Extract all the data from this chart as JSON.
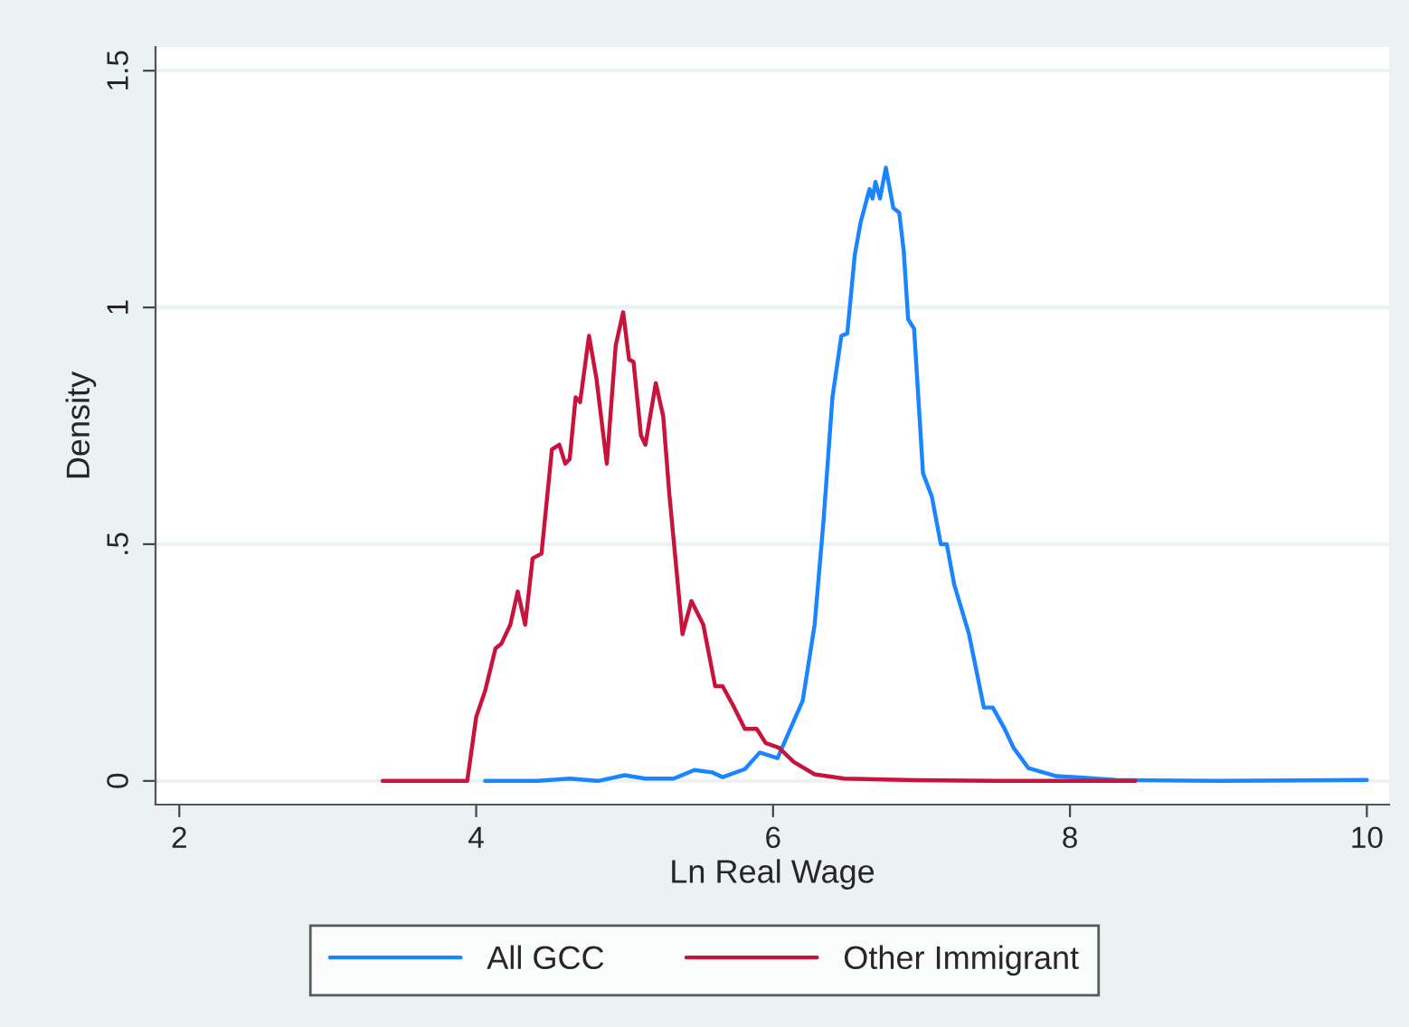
{
  "chart_data": {
    "type": "line",
    "xlabel": "Ln Real Wage",
    "ylabel": "Density",
    "xlim": [
      1.84,
      10.15
    ],
    "ylim": [
      -0.05,
      1.55
    ],
    "xticks": [
      2,
      4,
      6,
      8,
      10
    ],
    "yticks": [
      0,
      {
        "value": 0.5,
        "label": ".5"
      },
      1,
      1.5
    ],
    "grid": "y",
    "legend": "bottom",
    "marker": "none",
    "line_style": "solid",
    "series": [
      {
        "name": "All GCC",
        "color": "#1a85ff",
        "x": [
          4.06,
          4.41,
          4.63,
          4.82,
          5.0,
          5.14,
          5.33,
          5.47,
          5.59,
          5.66,
          5.81,
          5.91,
          6.03,
          6.2,
          6.28,
          6.34,
          6.4,
          6.46,
          6.5,
          6.55,
          6.59,
          6.65,
          6.67,
          6.69,
          6.72,
          6.76,
          6.81,
          6.85,
          6.88,
          6.91,
          6.95,
          7.01,
          7.07,
          7.13,
          7.17,
          7.22,
          7.32,
          7.42,
          7.48,
          7.56,
          7.62,
          7.72,
          7.91,
          8.09,
          8.31,
          9.0,
          10.0
        ],
        "values": [
          0.0,
          0.0,
          0.005,
          0.0,
          0.012,
          0.005,
          0.005,
          0.023,
          0.018,
          0.008,
          0.025,
          0.06,
          0.048,
          0.17,
          0.33,
          0.55,
          0.81,
          0.94,
          0.945,
          1.11,
          1.18,
          1.25,
          1.23,
          1.265,
          1.23,
          1.295,
          1.21,
          1.2,
          1.12,
          0.975,
          0.955,
          0.65,
          0.6,
          0.5,
          0.5,
          0.415,
          0.31,
          0.155,
          0.155,
          0.11,
          0.07,
          0.027,
          0.01,
          0.007,
          0.002,
          0.0,
          0.002
        ]
      },
      {
        "name": "Other Immigrant",
        "color": "#c8143c",
        "x": [
          3.37,
          3.94,
          4.0,
          4.06,
          4.13,
          4.17,
          4.23,
          4.28,
          4.33,
          4.38,
          4.44,
          4.51,
          4.56,
          4.6,
          4.63,
          4.67,
          4.7,
          4.76,
          4.81,
          4.88,
          4.94,
          4.99,
          5.03,
          5.06,
          5.11,
          5.14,
          5.21,
          5.26,
          5.3,
          5.39,
          5.45,
          5.53,
          5.61,
          5.66,
          5.73,
          5.81,
          5.89,
          5.95,
          6.04,
          6.14,
          6.28,
          6.48,
          6.89,
          7.5,
          8.44
        ],
        "values": [
          0.0,
          0.0,
          0.135,
          0.19,
          0.28,
          0.29,
          0.33,
          0.4,
          0.33,
          0.47,
          0.48,
          0.7,
          0.71,
          0.67,
          0.68,
          0.81,
          0.8,
          0.94,
          0.85,
          0.67,
          0.92,
          0.99,
          0.89,
          0.885,
          0.73,
          0.71,
          0.84,
          0.77,
          0.61,
          0.31,
          0.38,
          0.33,
          0.2,
          0.2,
          0.16,
          0.11,
          0.11,
          0.08,
          0.07,
          0.04,
          0.014,
          0.005,
          0.002,
          0.0,
          0.0
        ]
      }
    ]
  }
}
